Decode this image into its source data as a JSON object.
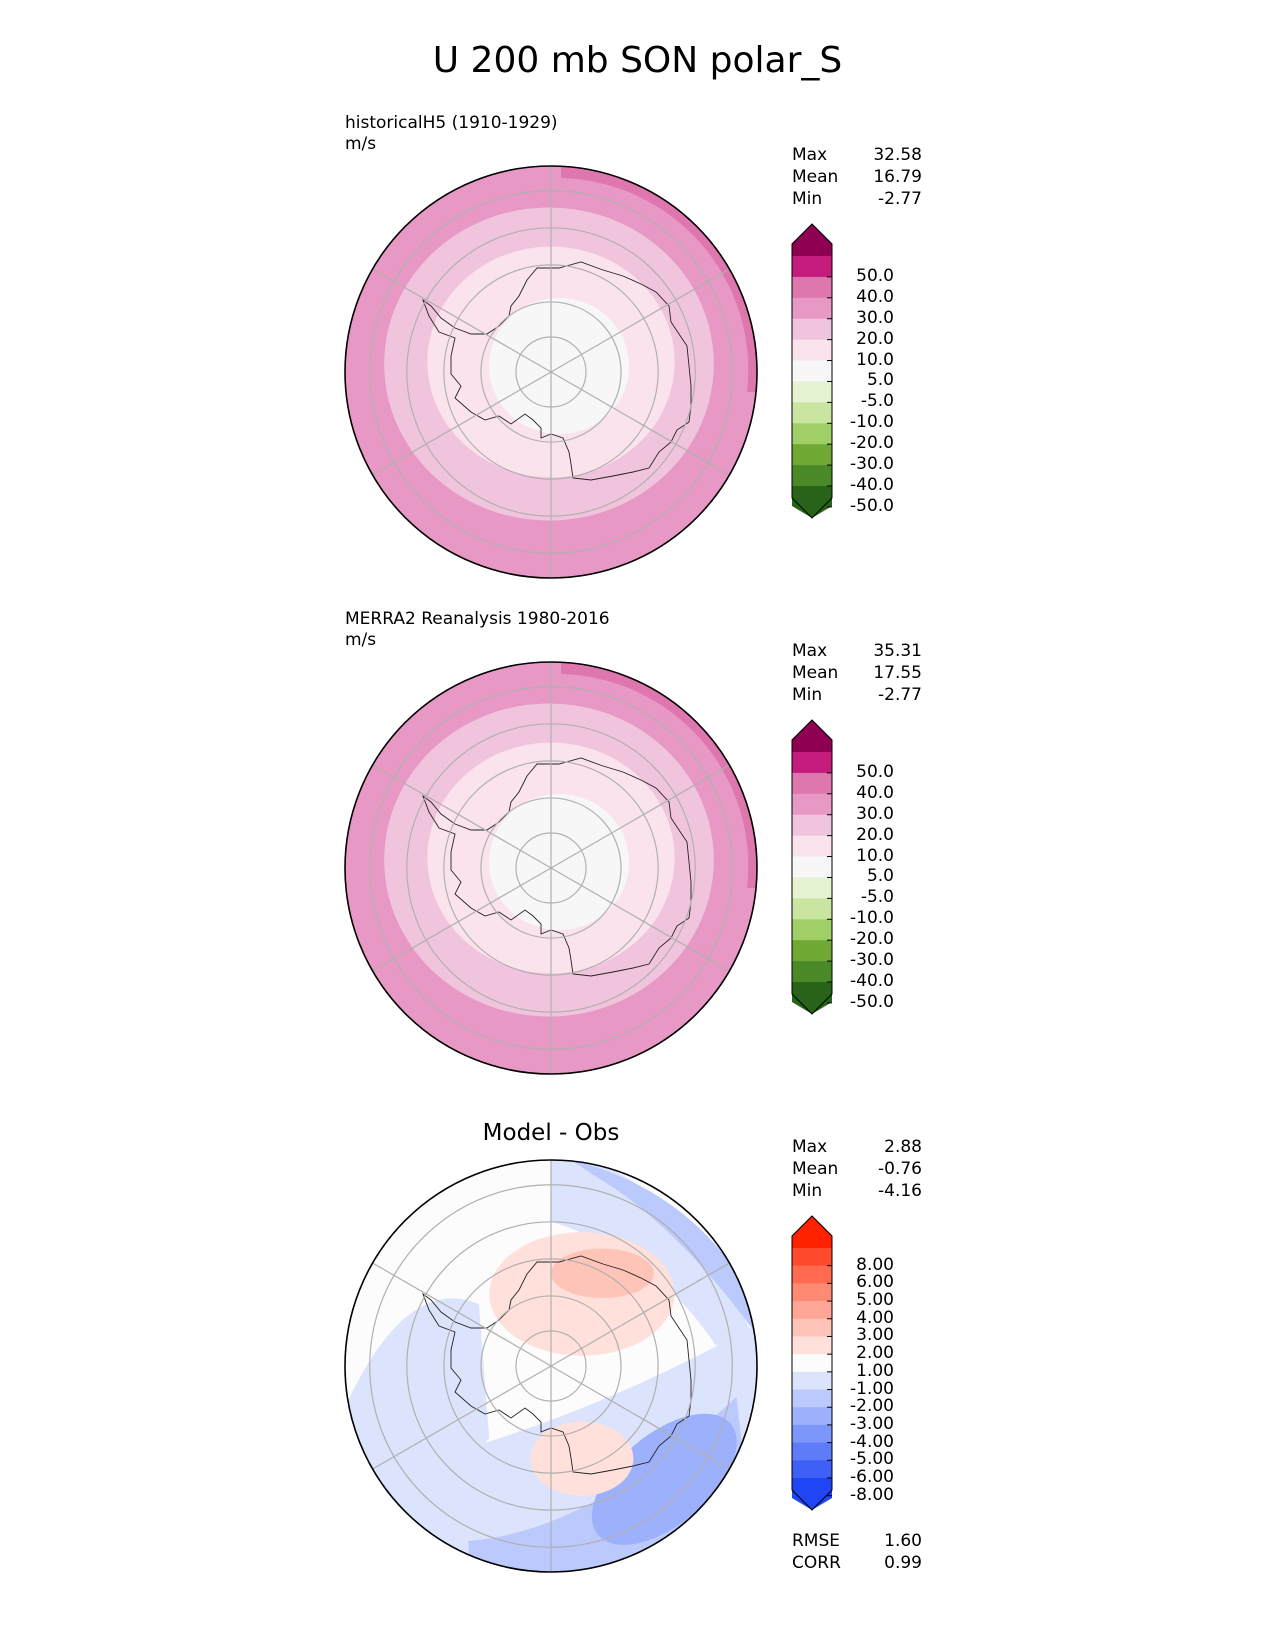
{
  "title": "U 200 mb SON polar_S",
  "chart_data": [
    {
      "type": "contour-map",
      "projection": "south polar stereographic",
      "title": "historicalH5 (1910-1929)",
      "units": "m/s",
      "stats": {
        "max_label": "Max",
        "max": "32.58",
        "mean_label": "Mean",
        "mean": "16.79",
        "min_label": "Min",
        "min": "-2.77"
      },
      "colorbar": {
        "tick_labels": [
          "50.0",
          "40.0",
          "30.0",
          "20.0",
          "10.0",
          "5.0",
          "-5.0",
          "-10.0",
          "-20.0",
          "-30.0",
          "-40.0",
          "-50.0"
        ],
        "colors": [
          "#8e0152",
          "#c51b7d",
          "#de77ae",
          "#e898c5",
          "#f1c4dd",
          "#fbe3ee",
          "#f7f7f7",
          "#e5f3d3",
          "#c9e5a0",
          "#9fcf66",
          "#6fa934",
          "#4a8a26",
          "#276419"
        ]
      },
      "fill_levels": [
        "#e898c5",
        "#f1c4dd",
        "#fbe3ee",
        "#f7f7f7"
      ]
    },
    {
      "type": "contour-map",
      "projection": "south polar stereographic",
      "title": "MERRA2 Reanalysis 1980-2016",
      "units": "m/s",
      "stats": {
        "max_label": "Max",
        "max": "35.31",
        "mean_label": "Mean",
        "mean": "17.55",
        "min_label": "Min",
        "min": "-2.77"
      },
      "colorbar": {
        "tick_labels": [
          "50.0",
          "40.0",
          "30.0",
          "20.0",
          "10.0",
          "5.0",
          "-5.0",
          "-10.0",
          "-20.0",
          "-30.0",
          "-40.0",
          "-50.0"
        ],
        "colors": [
          "#8e0152",
          "#c51b7d",
          "#de77ae",
          "#e898c5",
          "#f1c4dd",
          "#fbe3ee",
          "#f7f7f7",
          "#e5f3d3",
          "#c9e5a0",
          "#9fcf66",
          "#6fa934",
          "#4a8a26",
          "#276419"
        ]
      },
      "fill_levels": [
        "#e898c5",
        "#f1c4dd",
        "#fbe3ee",
        "#f7f7f7"
      ]
    },
    {
      "type": "contour-map",
      "projection": "south polar stereographic",
      "title": "Model - Obs",
      "units": "",
      "stats": {
        "max_label": "Max",
        "max": "2.88",
        "mean_label": "Mean",
        "mean": "-0.76",
        "min_label": "Min",
        "min": "-4.16"
      },
      "metrics": {
        "rmse_label": "RMSE",
        "rmse": "1.60",
        "corr_label": "CORR",
        "corr": "0.99"
      },
      "colorbar": {
        "tick_labels": [
          "8.00",
          "6.00",
          "5.00",
          "4.00",
          "3.00",
          "2.00",
          "1.00",
          "-1.00",
          "-2.00",
          "-3.00",
          "-4.00",
          "-5.00",
          "-6.00",
          "-8.00"
        ],
        "colors": [
          "#ff2200",
          "#ff4a2e",
          "#ff6a50",
          "#ff8a74",
          "#ffa696",
          "#ffc4b8",
          "#ffe0da",
          "#fcfcfc",
          "#dce3fd",
          "#bcc9fc",
          "#9cb0fb",
          "#7d96fa",
          "#5e7cf8",
          "#3e60f6",
          "#1f45f4"
        ]
      }
    }
  ]
}
